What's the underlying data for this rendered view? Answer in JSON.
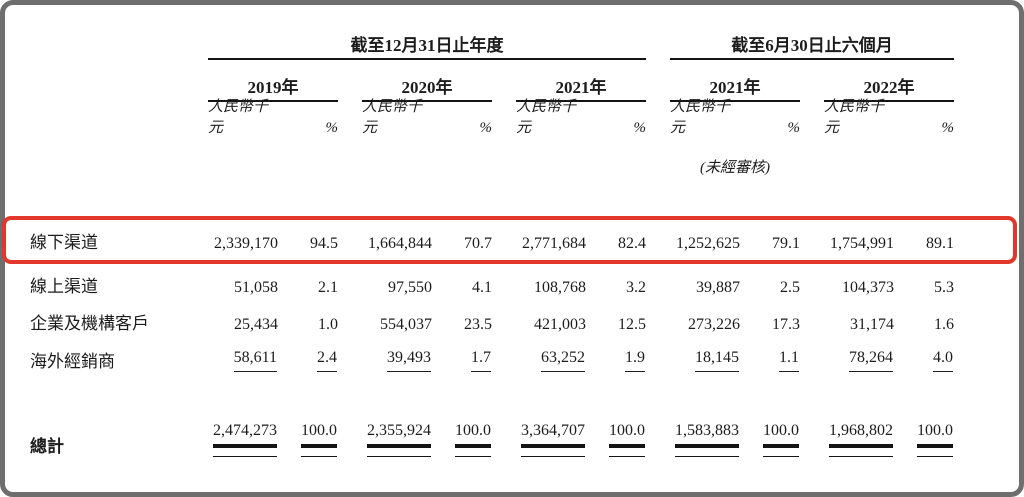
{
  "meta": {
    "frame_border_color": "#6e6e6e",
    "highlight_color": "#e0392b",
    "highlighted_row": "線下渠道"
  },
  "header": {
    "period_annual": "截至12月31日止年度",
    "period_interim": "截至6月30日止六個月",
    "years": [
      "2019年",
      "2020年",
      "2021年",
      "2021年",
      "2022年"
    ],
    "unit_label": "人民幣千元",
    "pct_label": "%",
    "unaudited_note": "(未經審核)"
  },
  "rows": [
    {
      "label": "線下渠道",
      "values": [
        "2,339,170",
        "94.5",
        "1,664,844",
        "70.7",
        "2,771,684",
        "82.4",
        "1,252,625",
        "79.1",
        "1,754,991",
        "89.1"
      ]
    },
    {
      "label": "線上渠道",
      "values": [
        "51,058",
        "2.1",
        "97,550",
        "4.1",
        "108,768",
        "3.2",
        "39,887",
        "2.5",
        "104,373",
        "5.3"
      ]
    },
    {
      "label": "企業及機構客戶",
      "values": [
        "25,434",
        "1.0",
        "554,037",
        "23.5",
        "421,003",
        "12.5",
        "273,226",
        "17.3",
        "31,174",
        "1.6"
      ]
    },
    {
      "label": "海外經銷商",
      "values": [
        "58,611",
        "2.4",
        "39,493",
        "1.7",
        "63,252",
        "1.9",
        "18,145",
        "1.1",
        "78,264",
        "4.0"
      ]
    }
  ],
  "total": {
    "label": "總計",
    "values": [
      "2,474,273",
      "100.0",
      "2,355,924",
      "100.0",
      "3,364,707",
      "100.0",
      "1,583,883",
      "100.0",
      "1,968,802",
      "100.0"
    ]
  }
}
